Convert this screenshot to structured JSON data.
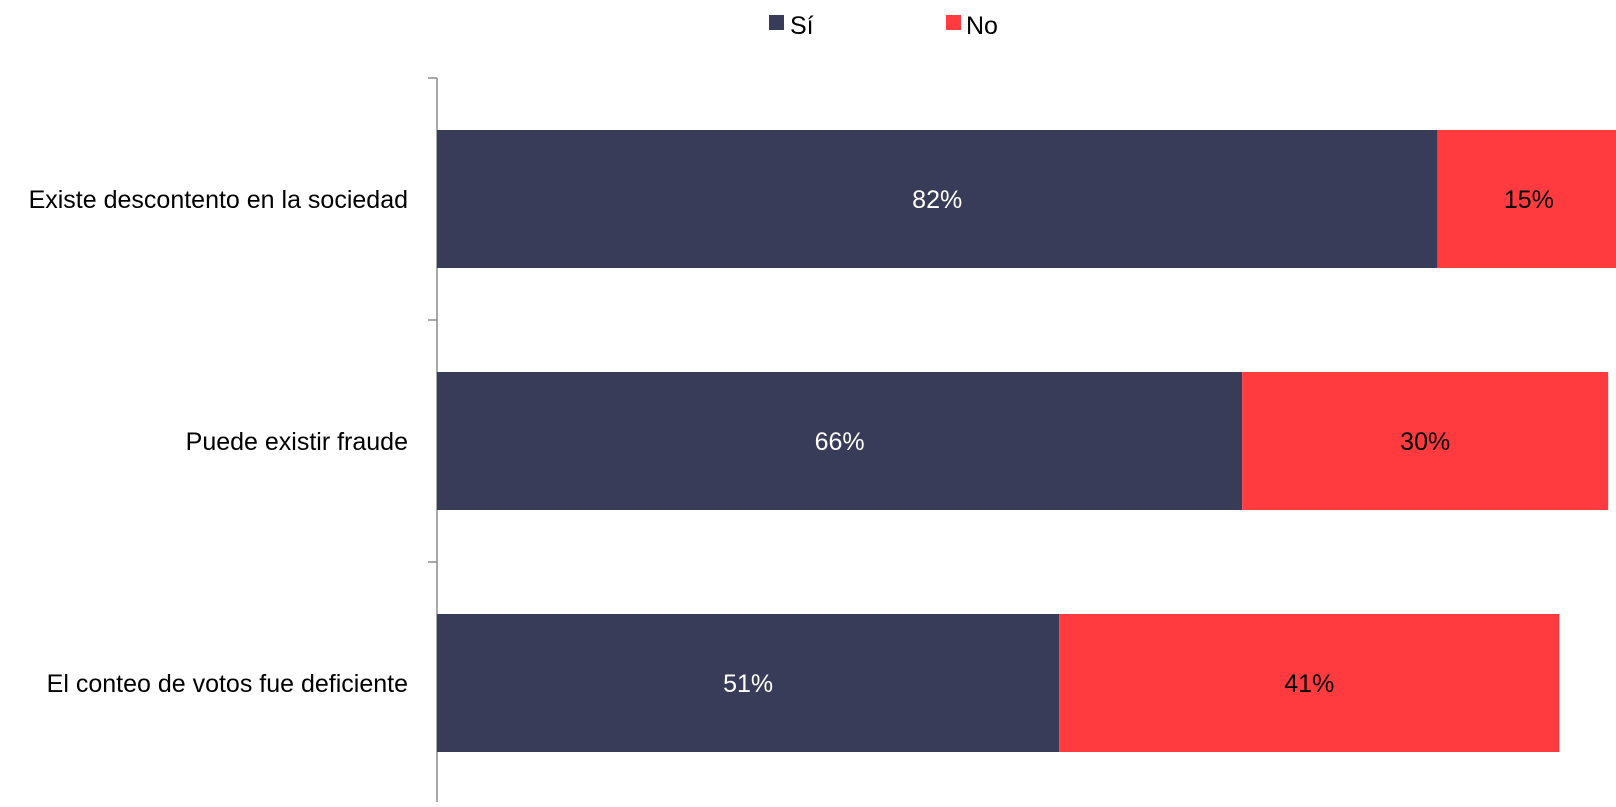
{
  "chart_data": {
    "type": "bar",
    "orientation": "horizontal",
    "stacked": true,
    "categories": [
      "Existe descontento en la sociedad",
      "Puede existir fraude",
      "El conteo de votos fue deficiente"
    ],
    "series": [
      {
        "name": "Sí",
        "values": [
          82,
          66,
          51
        ],
        "labels": [
          "82%",
          "66%",
          "51%"
        ],
        "color": "#393c59"
      },
      {
        "name": "No",
        "values": [
          15,
          30,
          41
        ],
        "labels": [
          "15%",
          "30%",
          "41%"
        ],
        "color": "#ff3b3f"
      }
    ],
    "xlim": [
      0,
      100
    ],
    "grid": false,
    "legend_position": "top-center"
  }
}
